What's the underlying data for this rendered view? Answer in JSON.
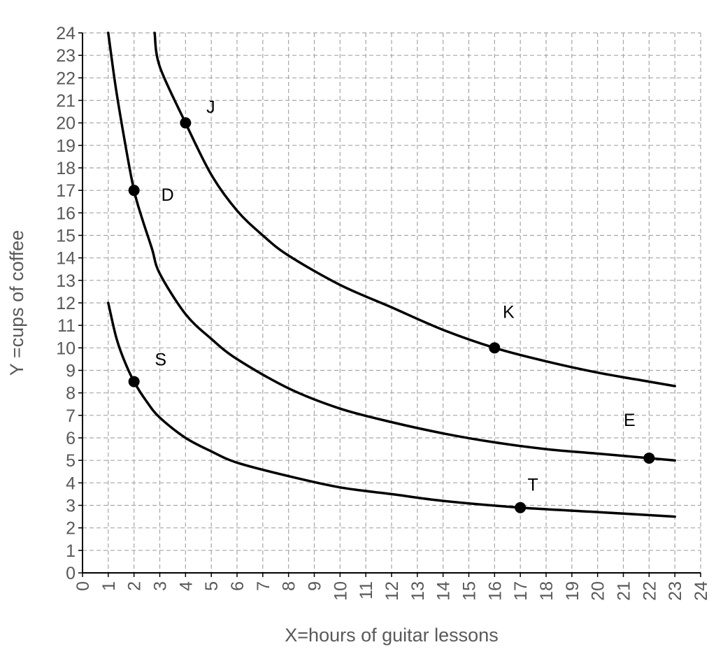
{
  "chart_data": {
    "type": "line",
    "title": "",
    "xlabel": "X=hours of guitar lessons",
    "ylabel": "Y =cups of coffee",
    "xlim": [
      0,
      24
    ],
    "ylim": [
      0,
      24
    ],
    "x_ticks": [
      0,
      1,
      2,
      3,
      4,
      5,
      6,
      7,
      8,
      9,
      10,
      11,
      12,
      13,
      14,
      15,
      16,
      17,
      18,
      19,
      20,
      21,
      22,
      23,
      24
    ],
    "y_ticks": [
      0,
      1,
      2,
      3,
      4,
      5,
      6,
      7,
      8,
      9,
      10,
      11,
      12,
      13,
      14,
      15,
      16,
      17,
      18,
      19,
      20,
      21,
      22,
      23,
      24
    ],
    "grid": true,
    "legend": "none",
    "series": [
      {
        "x": [
          2.8,
          3,
          4,
          5,
          6,
          7,
          8,
          10,
          12,
          14,
          16,
          18,
          20,
          22,
          23
        ],
        "y": [
          24,
          22.5,
          20,
          17.7,
          16.1,
          15,
          14.1,
          12.8,
          11.8,
          10.8,
          10,
          9.4,
          8.9,
          8.5,
          8.3
        ]
      },
      {
        "x": [
          1,
          1.3,
          1.7,
          2,
          2.3,
          2.7,
          3,
          4,
          5,
          6,
          8,
          10,
          12,
          14,
          16,
          18,
          20,
          22,
          23
        ],
        "y": [
          24,
          21.5,
          18.8,
          17,
          15.8,
          14.4,
          13.3,
          11.5,
          10.4,
          9.5,
          8.2,
          7.3,
          6.7,
          6.2,
          5.8,
          5.5,
          5.3,
          5.1,
          5.0
        ]
      },
      {
        "x": [
          1,
          1.3,
          1.6,
          2,
          2.5,
          3,
          4,
          5,
          6,
          8,
          10,
          12,
          14,
          17,
          20,
          23
        ],
        "y": [
          12,
          10.5,
          9.5,
          8.5,
          7.6,
          6.9,
          6.0,
          5.4,
          4.9,
          4.3,
          3.8,
          3.5,
          3.2,
          2.9,
          2.7,
          2.5
        ]
      }
    ],
    "points": [
      {
        "label": "J",
        "x": 4,
        "y": 20
      },
      {
        "label": "D",
        "x": 2,
        "y": 17
      },
      {
        "label": "K",
        "x": 16,
        "y": 10
      },
      {
        "label": "E",
        "x": 22,
        "y": 5.1
      },
      {
        "label": "S",
        "x": 2,
        "y": 8.5
      },
      {
        "label": "T",
        "x": 17,
        "y": 2.9
      }
    ]
  }
}
